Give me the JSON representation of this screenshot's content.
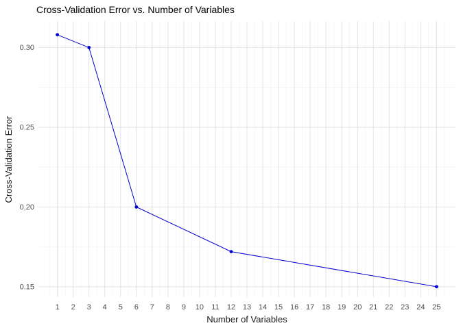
{
  "title": "Cross-Validation Error vs. Number of Variables",
  "chart_data": {
    "type": "line",
    "title": "Cross-Validation Error vs. Number of Variables",
    "xlabel": "Number of Variables",
    "ylabel": "Cross-Validation Error",
    "x": [
      1,
      3,
      6,
      12,
      25
    ],
    "y": [
      0.308,
      0.3,
      0.2,
      0.172,
      0.15
    ],
    "x_ticks": [
      1,
      2,
      3,
      4,
      5,
      6,
      7,
      8,
      9,
      10,
      11,
      12,
      13,
      14,
      15,
      16,
      17,
      18,
      19,
      20,
      21,
      22,
      23,
      24,
      25
    ],
    "x_tick_labels": [
      "1",
      "2",
      "3",
      "4",
      "5",
      "6",
      "7",
      "8",
      "9",
      "10",
      "11",
      "12",
      "13",
      "14",
      "15",
      "16",
      "17",
      "18",
      "19",
      "20",
      "21",
      "22",
      "23",
      "24",
      "25"
    ],
    "y_ticks": [
      0.15,
      0.2,
      0.25,
      0.3
    ],
    "y_tick_labels": [
      "0.15",
      "0.20",
      "0.25",
      "0.30"
    ],
    "xlim": [
      -0.2,
      26.2
    ],
    "ylim": [
      0.1435,
      0.3165
    ],
    "x_minor_step": 0.5,
    "grid": true,
    "legend": false,
    "line_color": "#0000CD",
    "point_color": "#0000CD",
    "point_radius": 2.4,
    "major_grid_color": "#E2E2E2",
    "minor_grid_color": "#F0F0F0",
    "background_color": "#FFFFFF",
    "tick_text_color": "#4d4d4d",
    "axis_title_color": "#1a1a1a",
    "title_color": "#000000"
  }
}
